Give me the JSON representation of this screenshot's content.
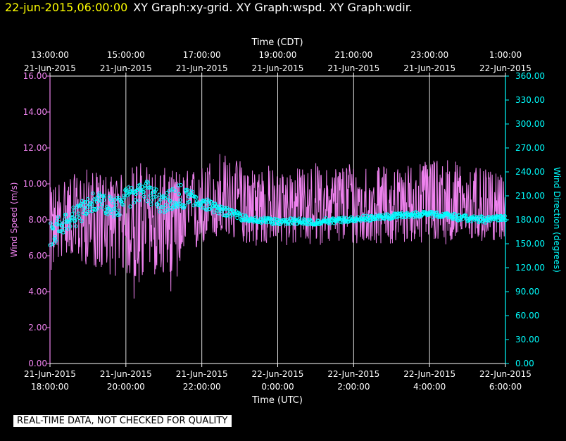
{
  "header": {
    "timestamp": "22-jun-2015,06:00:00",
    "title": "XY Graph:xy-grid.  XY Graph:wspd.  XY Graph:wdir."
  },
  "disclaimer": "REAL-TIME DATA, NOT CHECKED FOR QUALITY",
  "colors": {
    "wind_speed": "#ee82ee",
    "wind_direction": "#00ffff",
    "grid": "#dcdcdc",
    "axis_text": "#ffffff"
  },
  "chart_data": {
    "type": "line",
    "xlabel_top": "Time (CDT)",
    "xlabel_bottom": "Time (UTC)",
    "ylabel_left": "Wind Speed (m/s)",
    "ylabel_right": "Wind Direction (degrees)",
    "xlim_hours_utc": [
      0,
      12
    ],
    "ylim_left": [
      0,
      16
    ],
    "ylim_right": [
      0,
      360
    ],
    "grid": "vertical",
    "top_ticks": [
      {
        "line1": "13:00:00",
        "line2": "21-Jun-2015"
      },
      {
        "line1": "15:00:00",
        "line2": "21-Jun-2015"
      },
      {
        "line1": "17:00:00",
        "line2": "21-Jun-2015"
      },
      {
        "line1": "19:00:00",
        "line2": "21-Jun-2015"
      },
      {
        "line1": "21:00:00",
        "line2": "21-Jun-2015"
      },
      {
        "line1": "23:00:00",
        "line2": "21-Jun-2015"
      },
      {
        "line1": "1:00:00",
        "line2": "22-Jun-2015"
      }
    ],
    "bottom_ticks": [
      {
        "line1": "21-Jun-2015",
        "line2": "18:00:00"
      },
      {
        "line1": "21-Jun-2015",
        "line2": "20:00:00"
      },
      {
        "line1": "21-Jun-2015",
        "line2": "22:00:00"
      },
      {
        "line1": "22-Jun-2015",
        "line2": "0:00:00"
      },
      {
        "line1": "22-Jun-2015",
        "line2": "2:00:00"
      },
      {
        "line1": "22-Jun-2015",
        "line2": "4:00:00"
      },
      {
        "line1": "22-Jun-2015",
        "line2": "6:00:00"
      }
    ],
    "left_ticks": [
      "0.00",
      "2.00",
      "4.00",
      "6.00",
      "8.00",
      "10.00",
      "12.00",
      "14.00",
      "16.00"
    ],
    "right_ticks": [
      "0.00",
      "30.00",
      "60.00",
      "90.00",
      "120.00",
      "150.00",
      "180.00",
      "210.00",
      "240.00",
      "270.00",
      "300.00",
      "330.00",
      "360.00"
    ],
    "series": [
      {
        "name": "Wind Speed",
        "axis": "left",
        "style": "line",
        "x_hours_since_18utc": [
          0,
          0.25,
          0.5,
          0.75,
          1,
          1.25,
          1.5,
          1.75,
          2,
          2.25,
          2.5,
          2.75,
          3,
          3.25,
          3.5,
          3.75,
          4,
          4.25,
          4.5,
          4.75,
          5,
          5.25,
          5.5,
          5.75,
          6,
          6.25,
          6.5,
          6.75,
          7,
          7.25,
          7.5,
          7.75,
          8,
          8.25,
          8.5,
          8.75,
          9,
          9.25,
          9.5,
          9.75,
          10,
          10.25,
          10.5,
          10.75,
          11,
          11.25,
          11.5,
          11.75,
          12
        ],
        "mean": [
          7.6,
          7.9,
          8.0,
          7.9,
          8.2,
          8.3,
          8.1,
          8.3,
          8.0,
          8.2,
          8.3,
          8.1,
          7.9,
          8.1,
          8.2,
          8.3,
          8.5,
          8.7,
          8.8,
          8.9,
          9.0,
          8.8,
          8.7,
          8.8,
          8.9,
          8.9,
          8.7,
          8.8,
          8.8,
          8.9,
          8.9,
          8.8,
          8.8,
          8.7,
          8.7,
          8.8,
          8.8,
          8.9,
          8.8,
          8.8,
          8.9,
          8.9,
          8.9,
          8.9,
          8.9,
          8.9,
          8.7,
          8.6,
          8.5
        ],
        "min": [
          4.8,
          5.8,
          6.2,
          5.4,
          5.5,
          5.2,
          5.0,
          4.8,
          5.0,
          3.2,
          4.8,
          4.9,
          4.8,
          3.7,
          5.7,
          5.8,
          6.6,
          6.8,
          7.0,
          6.8,
          6.8,
          6.6,
          6.4,
          6.6,
          6.5,
          6.5,
          6.6,
          6.5,
          6.6,
          6.6,
          6.6,
          6.7,
          6.5,
          6.6,
          6.6,
          6.7,
          6.6,
          6.6,
          6.8,
          6.6,
          6.7,
          6.7,
          6.6,
          6.7,
          6.8,
          6.6,
          6.8,
          6.8,
          6.9
        ],
        "max": [
          9.8,
          10.3,
          10.6,
          10.5,
          10.9,
          10.6,
          10.6,
          10.5,
          10.6,
          11.3,
          11.2,
          10.8,
          10.9,
          10.8,
          10.7,
          10.9,
          11.0,
          11.5,
          12.0,
          11.3,
          11.4,
          11.1,
          11.0,
          11.1,
          10.6,
          10.8,
          10.9,
          11.0,
          11.2,
          10.8,
          11.0,
          11.3,
          11.3,
          11.2,
          10.9,
          11.0,
          11.0,
          10.9,
          11.2,
          11.2,
          11.5,
          11.8,
          11.4,
          11.3,
          11.0,
          10.9,
          10.8,
          10.6,
          10.4
        ]
      },
      {
        "name": "Wind Direction",
        "axis": "right",
        "style": "markers",
        "x_hours_since_18utc": [
          0,
          0.25,
          0.5,
          0.75,
          1,
          1.25,
          1.5,
          1.75,
          2,
          2.25,
          2.5,
          2.75,
          3,
          3.25,
          3.5,
          3.75,
          4,
          4.25,
          4.5,
          4.75,
          5,
          5.25,
          5.5,
          5.75,
          6,
          6.25,
          6.5,
          6.75,
          7,
          7.25,
          7.5,
          7.75,
          8,
          8.25,
          8.5,
          8.75,
          9,
          9.25,
          9.5,
          9.75,
          10,
          10.25,
          10.5,
          10.75,
          11,
          11.25,
          11.5,
          11.75,
          12
        ],
        "mean": [
          160,
          172,
          178,
          186,
          198,
          204,
          200,
          194,
          204,
          214,
          220,
          206,
          200,
          203,
          205,
          210,
          203,
          197,
          193,
          190,
          184,
          180,
          180,
          179,
          178,
          178,
          178,
          177,
          177,
          178,
          179,
          180,
          181,
          182,
          182,
          184,
          184,
          186,
          186,
          187,
          187,
          186,
          185,
          183,
          182,
          181,
          180,
          182,
          183
        ],
        "min": [
          140,
          155,
          165,
          170,
          185,
          190,
          184,
          180,
          188,
          195,
          200,
          190,
          185,
          188,
          190,
          195,
          192,
          188,
          185,
          182,
          178,
          175,
          175,
          174,
          173,
          173,
          173,
          173,
          173,
          174,
          175,
          176,
          177,
          178,
          178,
          180,
          180,
          182,
          182,
          183,
          183,
          182,
          181,
          178,
          177,
          176,
          175,
          177,
          178
        ],
        "max": [
          180,
          190,
          195,
          205,
          215,
          217,
          212,
          210,
          225,
          230,
          234,
          225,
          215,
          225,
          232,
          218,
          212,
          205,
          198,
          195,
          190,
          186,
          184,
          183,
          183,
          183,
          183,
          182,
          182,
          183,
          183,
          184,
          185,
          186,
          186,
          188,
          188,
          190,
          190,
          191,
          191,
          190,
          189,
          188,
          187,
          186,
          185,
          186,
          188
        ]
      }
    ]
  }
}
